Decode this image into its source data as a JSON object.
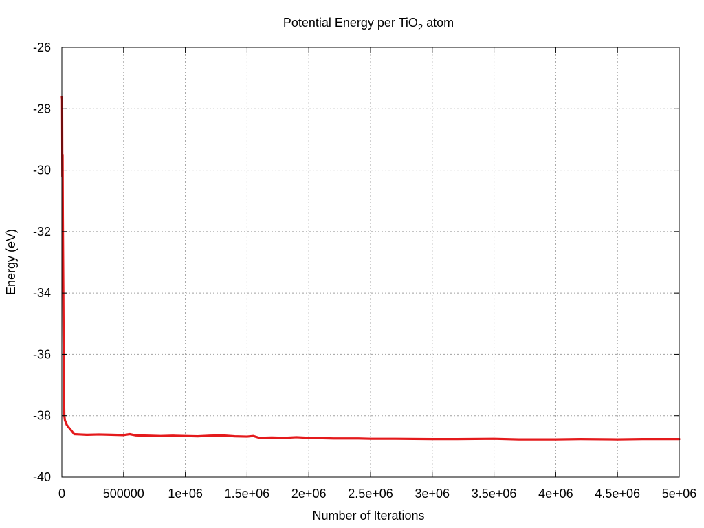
{
  "chart_data": {
    "type": "line",
    "title": {
      "prefix": "Potential Energy per TiO",
      "subscript": "2",
      "suffix": " atom"
    },
    "xlabel": "Number of Iterations",
    "ylabel": "Energy (eV)",
    "xlim": [
      0,
      5000000
    ],
    "ylim": [
      -40,
      -26
    ],
    "grid": true,
    "xticks": [
      {
        "value": 0,
        "label": "0"
      },
      {
        "value": 500000,
        "label": "500000"
      },
      {
        "value": 1000000,
        "label": "1e+06"
      },
      {
        "value": 1500000,
        "label": "1.5e+06"
      },
      {
        "value": 2000000,
        "label": "2e+06"
      },
      {
        "value": 2500000,
        "label": "2.5e+06"
      },
      {
        "value": 3000000,
        "label": "3e+06"
      },
      {
        "value": 3500000,
        "label": "3.5e+06"
      },
      {
        "value": 4000000,
        "label": "4e+06"
      },
      {
        "value": 4500000,
        "label": "4.5e+06"
      },
      {
        "value": 5000000,
        "label": "5e+06"
      }
    ],
    "yticks": [
      {
        "value": -26,
        "label": "-26"
      },
      {
        "value": -28,
        "label": "-28"
      },
      {
        "value": -30,
        "label": "-30"
      },
      {
        "value": -32,
        "label": "-32"
      },
      {
        "value": -34,
        "label": "-34"
      },
      {
        "value": -36,
        "label": "-36"
      },
      {
        "value": -38,
        "label": "-38"
      },
      {
        "value": -40,
        "label": "-40"
      }
    ],
    "series": [
      {
        "color": "#e41a1c",
        "points": [
          [
            0,
            -27.6
          ],
          [
            2000,
            -27.7
          ],
          [
            4000,
            -30.2
          ],
          [
            6000,
            -29.5
          ],
          [
            8000,
            -31.5
          ],
          [
            10000,
            -32.8
          ],
          [
            12000,
            -34.0
          ],
          [
            14000,
            -35.4
          ],
          [
            16000,
            -36.6
          ],
          [
            18000,
            -37.5
          ],
          [
            20000,
            -38.0
          ],
          [
            25000,
            -38.15
          ],
          [
            30000,
            -38.2
          ],
          [
            40000,
            -38.3
          ],
          [
            50000,
            -38.35
          ],
          [
            60000,
            -38.4
          ],
          [
            70000,
            -38.45
          ],
          [
            80000,
            -38.5
          ],
          [
            90000,
            -38.55
          ],
          [
            100000,
            -38.6
          ],
          [
            150000,
            -38.61
          ],
          [
            200000,
            -38.62
          ],
          [
            300000,
            -38.61
          ],
          [
            400000,
            -38.62
          ],
          [
            500000,
            -38.63
          ],
          [
            550000,
            -38.6
          ],
          [
            600000,
            -38.64
          ],
          [
            700000,
            -38.65
          ],
          [
            800000,
            -38.66
          ],
          [
            900000,
            -38.65
          ],
          [
            1000000,
            -38.66
          ],
          [
            1100000,
            -38.67
          ],
          [
            1200000,
            -38.65
          ],
          [
            1300000,
            -38.64
          ],
          [
            1400000,
            -38.67
          ],
          [
            1500000,
            -38.68
          ],
          [
            1550000,
            -38.66
          ],
          [
            1600000,
            -38.72
          ],
          [
            1700000,
            -38.71
          ],
          [
            1800000,
            -38.72
          ],
          [
            1900000,
            -38.7
          ],
          [
            2000000,
            -38.72
          ],
          [
            2200000,
            -38.74
          ],
          [
            2400000,
            -38.74
          ],
          [
            2500000,
            -38.75
          ],
          [
            2700000,
            -38.75
          ],
          [
            3000000,
            -38.76
          ],
          [
            3200000,
            -38.76
          ],
          [
            3500000,
            -38.75
          ],
          [
            3700000,
            -38.77
          ],
          [
            4000000,
            -38.77
          ],
          [
            4200000,
            -38.76
          ],
          [
            4500000,
            -38.77
          ],
          [
            4700000,
            -38.76
          ],
          [
            5000000,
            -38.76
          ]
        ]
      }
    ]
  }
}
